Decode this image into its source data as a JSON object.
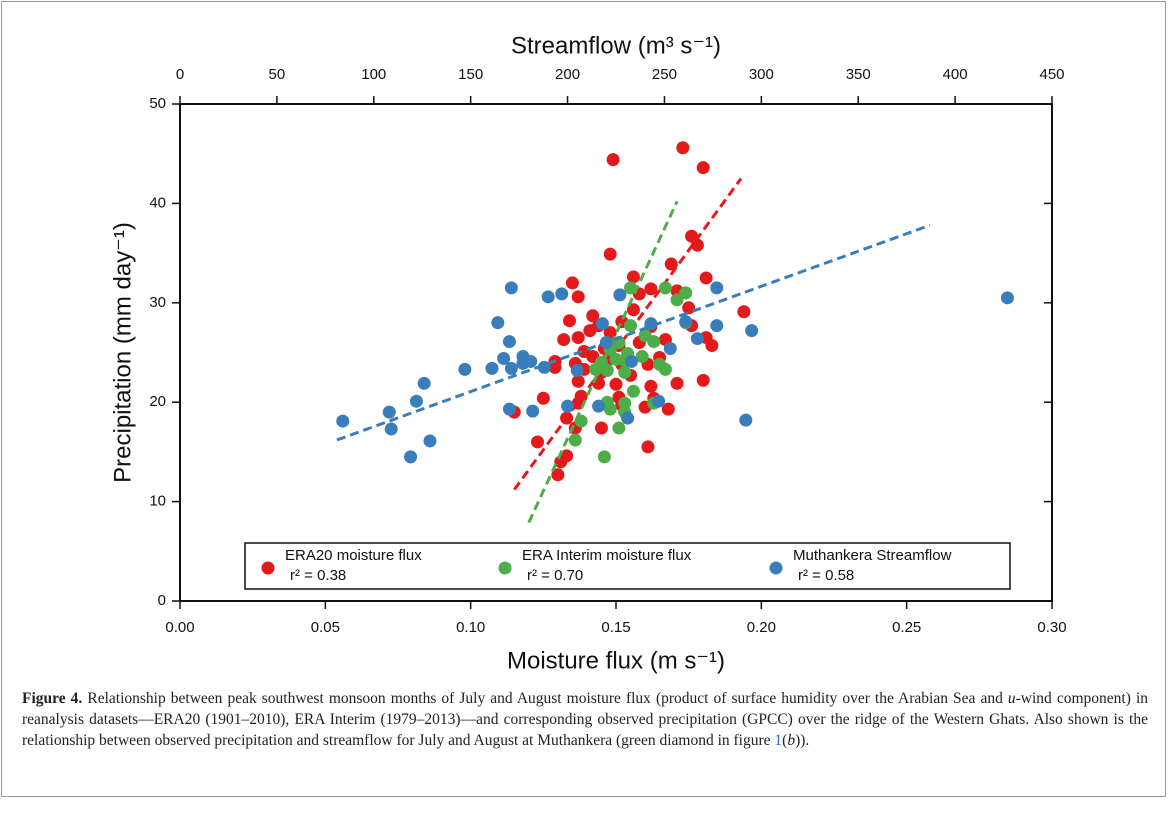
{
  "chart_data": {
    "type": "scatter",
    "xlabel": "Moisture flux (m s⁻¹)",
    "ylabel": "Precipitation (mm day⁻¹)",
    "x2label": "Streamflow (m³ s⁻¹)",
    "xlim": [
      0,
      0.3
    ],
    "xticks": [
      {
        "value": 0,
        "label": "0.00"
      },
      {
        "value": 0.05,
        "label": "0.05"
      },
      {
        "value": 0.1,
        "label": "0.10"
      },
      {
        "value": 0.15,
        "label": "0.15"
      },
      {
        "value": 0.2,
        "label": "0.20"
      },
      {
        "value": 0.25,
        "label": "0.25"
      },
      {
        "value": 0.3,
        "label": "0.30"
      }
    ],
    "x2lim": [
      0,
      450
    ],
    "x2ticks": [
      0,
      50,
      100,
      150,
      200,
      250,
      300,
      350,
      400,
      450
    ],
    "ylim": [
      0,
      50
    ],
    "yticks": [
      0,
      10,
      20,
      30,
      40,
      50
    ],
    "series": [
      {
        "name": "ERA20 moisture flux",
        "stat": "r² = 0.38",
        "color": "#e3191c",
        "x": [
          0.149,
          0.173,
          0.18,
          0.176,
          0.178,
          0.148,
          0.169,
          0.156,
          0.135,
          0.181,
          0.162,
          0.171,
          0.158,
          0.137,
          0.194,
          0.156,
          0.175,
          0.142,
          0.134,
          0.152,
          0.144,
          0.162,
          0.176,
          0.148,
          0.141,
          0.137,
          0.181,
          0.132,
          0.167,
          0.158,
          0.151,
          0.146,
          0.183,
          0.139,
          0.142,
          0.165,
          0.129,
          0.136,
          0.147,
          0.152,
          0.161,
          0.129,
          0.139,
          0.145,
          0.155,
          0.137,
          0.15,
          0.144,
          0.162,
          0.171,
          0.18,
          0.138,
          0.125,
          0.151,
          0.163,
          0.137,
          0.152,
          0.16,
          0.115,
          0.133,
          0.123,
          0.136,
          0.145,
          0.133,
          0.131,
          0.13,
          0.161,
          0.168
        ],
        "y": [
          44.4,
          45.6,
          43.6,
          36.7,
          35.8,
          34.9,
          33.9,
          32.6,
          32.0,
          32.5,
          31.4,
          31.2,
          30.9,
          30.6,
          29.1,
          29.3,
          29.5,
          28.7,
          28.2,
          28.1,
          27.7,
          27.6,
          27.7,
          27.0,
          27.2,
          26.5,
          26.5,
          26.3,
          26.3,
          26.0,
          25.7,
          25.4,
          25.7,
          25.1,
          24.6,
          24.5,
          24.1,
          23.9,
          24.2,
          23.8,
          23.8,
          23.5,
          23.3,
          23.0,
          22.7,
          22.1,
          21.8,
          21.9,
          21.6,
          21.9,
          22.2,
          20.6,
          20.4,
          20.5,
          20.4,
          19.9,
          19.7,
          19.5,
          19.0,
          18.4,
          16.0,
          17.4,
          17.4,
          14.6,
          14.0,
          12.7,
          15.5,
          19.3
        ],
        "trend": {
          "x": [
            0.115,
            0.193
          ],
          "y": [
            11.2,
            42.5
          ]
        }
      },
      {
        "name": "ERA Interim moisture flux",
        "stat": "r² = 0.70",
        "color": "#4cad49",
        "x": [
          0.167,
          0.174,
          0.171,
          0.155,
          0.174,
          0.155,
          0.16,
          0.151,
          0.163,
          0.148,
          0.154,
          0.159,
          0.15,
          0.153,
          0.165,
          0.145,
          0.147,
          0.153,
          0.143,
          0.156,
          0.147,
          0.153,
          0.148,
          0.153,
          0.151,
          0.138,
          0.136,
          0.146,
          0.163,
          0.167
        ],
        "y": [
          31.5,
          31.0,
          30.3,
          31.5,
          28.0,
          27.7,
          26.7,
          26.0,
          26.1,
          25.3,
          24.9,
          24.6,
          24.3,
          24.2,
          23.8,
          24.0,
          23.2,
          23.0,
          23.3,
          21.1,
          20.0,
          19.9,
          19.3,
          19.0,
          17.4,
          18.1,
          16.2,
          14.5,
          19.9,
          23.3
        ],
        "trend": {
          "x": [
            0.12,
            0.171
          ],
          "y": [
            7.9,
            40.2
          ]
        }
      },
      {
        "name": "Muthankera Streamflow",
        "stat": "r² = 0.58",
        "color": "#3a7dbb",
        "axis": "x2",
        "x": [
          84,
          108,
          109,
          122,
          126,
          119,
          129,
          147,
          161,
          164,
          167,
          170,
          171,
          170,
          171,
          177,
          177,
          181,
          182,
          188,
          190,
          197,
          200,
          205,
          216,
          218,
          220,
          227,
          231,
          233,
          243,
          247,
          253,
          261,
          267,
          277,
          277,
          292,
          295,
          427
        ],
        "y": [
          18.1,
          19.0,
          17.3,
          20.1,
          21.9,
          14.5,
          16.1,
          23.3,
          23.4,
          28.0,
          24.4,
          26.1,
          31.5,
          19.3,
          23.4,
          24.6,
          23.9,
          24.1,
          19.1,
          23.5,
          30.6,
          30.9,
          19.6,
          23.2,
          19.6,
          27.9,
          26.0,
          30.8,
          18.4,
          24.1,
          27.9,
          20.1,
          25.4,
          28.1,
          26.4,
          27.7,
          31.5,
          18.2,
          27.2,
          30.5
        ],
        "trend": {
          "x": [
            81,
            387
          ],
          "y": [
            16.2,
            37.8
          ]
        }
      }
    ]
  },
  "caption": {
    "parts": [
      "Figure 4.",
      " Relationship between peak southwest monsoon months of July and August moisture flux (product of surface humidity over the Arabian Sea and ",
      "u",
      "-wind component) in reanalysis datasets—ERA20 (1901–2010), ERA Interim (1979–2013)—and corresponding observed precipitation (GPCC) over the ridge of the Western Ghats. Also shown is the relationship between observed precipitation and streamflow for July and August at Muthankera (green diamond in figure ",
      "1",
      "(",
      "b",
      "))."
    ]
  }
}
